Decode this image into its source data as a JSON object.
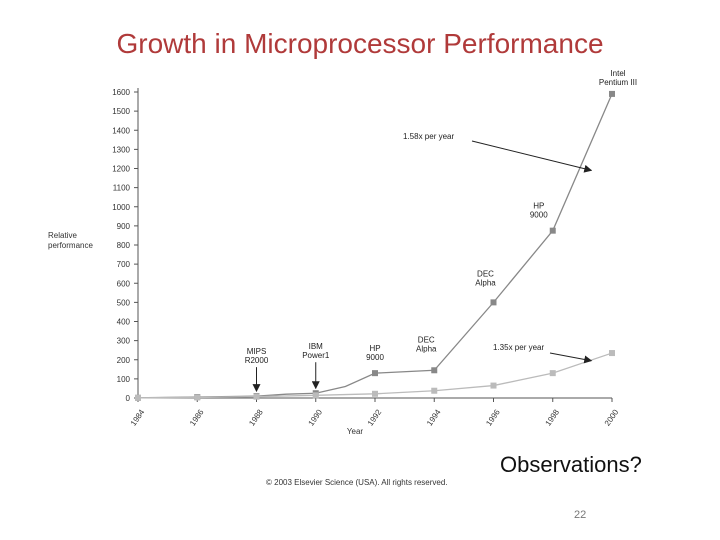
{
  "slide": {
    "title": "Growth in Microprocessor Performance",
    "observations": "Observations?",
    "copyright": "© 2003 Elsevier Science (USA). All rights reserved.",
    "page_number": "22"
  },
  "colors": {
    "title": "#b03a3a",
    "upper_series": "#888888",
    "lower_series": "#bbbbbb",
    "axis": "#555555"
  },
  "chart_data": {
    "type": "line",
    "title": "",
    "xlabel": "Year",
    "ylabel": "Relative performance",
    "ylim": [
      0,
      1600
    ],
    "xlim": [
      1984,
      2000
    ],
    "x_ticks": [
      1984,
      1986,
      1988,
      1990,
      1992,
      1994,
      1996,
      1998,
      2000
    ],
    "y_ticks": [
      0,
      100,
      200,
      300,
      400,
      500,
      600,
      700,
      800,
      900,
      1000,
      1100,
      1200,
      1300,
      1400,
      1500,
      1600
    ],
    "grid": false,
    "legend": "none",
    "series": [
      {
        "x": [
          1984,
          1986,
          1988,
          1989,
          1990,
          1991,
          1992,
          1994,
          1996,
          1998,
          2000
        ],
        "y": [
          1,
          5,
          10,
          20,
          25,
          60,
          130,
          145,
          500,
          875,
          1590
        ],
        "markers": [
          1984,
          1986,
          1988,
          1990,
          1992,
          1994,
          1996,
          1998,
          2000
        ]
      },
      {
        "x": [
          1984,
          1986,
          1988,
          1990,
          1992,
          1994,
          1996,
          1998,
          2000
        ],
        "y": [
          1,
          3,
          7,
          14,
          22,
          38,
          65,
          130,
          235
        ],
        "markers": [
          1984,
          1986,
          1988,
          1990,
          1992,
          1994,
          1996,
          1998,
          2000
        ]
      }
    ],
    "annotations": [
      {
        "id": "mips",
        "lines": [
          "MIPS",
          "R2000"
        ],
        "x": 1988,
        "y": 10,
        "arrow": true
      },
      {
        "id": "ibm",
        "lines": [
          "IBM",
          "Power1"
        ],
        "x": 1990,
        "y": 25,
        "arrow": true
      },
      {
        "id": "hp9000-low",
        "lines": [
          "HP",
          "9000"
        ],
        "x": 1992,
        "y": 130,
        "arrow": false
      },
      {
        "id": "dec-low",
        "lines": [
          "DEC",
          "Alpha"
        ],
        "x": 1994,
        "y": 145,
        "arrow": false
      },
      {
        "id": "dec-high",
        "lines": [
          "DEC",
          "Alpha"
        ],
        "x": 1996,
        "y": 500,
        "arrow": false
      },
      {
        "id": "hp9000-high",
        "lines": [
          "HP",
          "9000"
        ],
        "x": 1998,
        "y": 875,
        "arrow": false
      },
      {
        "id": "pentium",
        "lines": [
          "Intel",
          "Pentium III"
        ],
        "x": 2000,
        "y": 1590,
        "arrow": false
      },
      {
        "id": "rate-158",
        "lines": [
          "1.58x per year"
        ],
        "x": 1999.3,
        "y": 1190,
        "arrow": true
      },
      {
        "id": "rate-135",
        "lines": [
          "1.35x per year"
        ],
        "x": 1999.3,
        "y": 195,
        "arrow": true
      }
    ]
  }
}
